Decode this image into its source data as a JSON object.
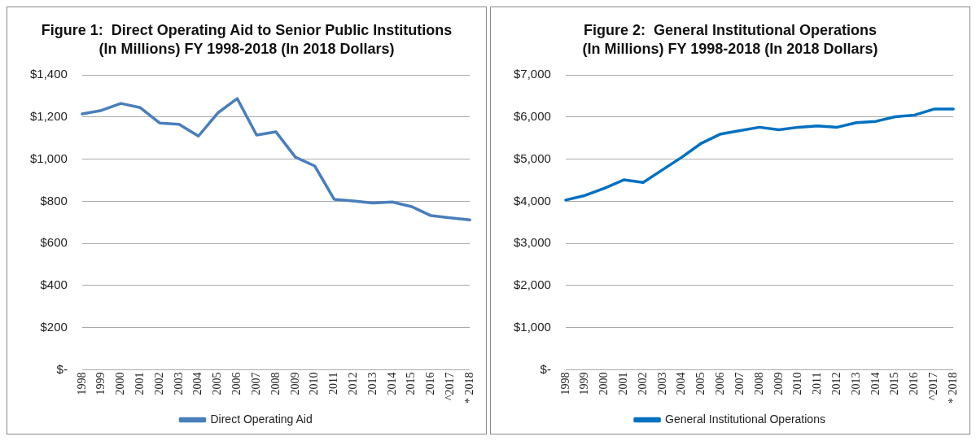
{
  "chart_data": [
    {
      "type": "line",
      "title": "Figure 1:  Direct Operating Aid to Senior Public Institutions",
      "subtitle": "(In Millions) FY 1998-2018 (In 2018 Dollars)",
      "categories": [
        "1998",
        "1999",
        "2000",
        "2001",
        "2002",
        "2003",
        "2004",
        "2005",
        "2006",
        "2007",
        "2008",
        "2009",
        "2010",
        "2011",
        "2012",
        "2013",
        "2014",
        "2015",
        "2016",
        "^2017",
        "* 2018"
      ],
      "series": [
        {
          "name": "Direct Operating Aid",
          "color": "#4a7ebb",
          "values": [
            1215,
            1232,
            1265,
            1245,
            1172,
            1166,
            1110,
            1220,
            1288,
            1115,
            1130,
            1010,
            968,
            810,
            802,
            792,
            797,
            775,
            732,
            722,
            712
          ]
        }
      ],
      "ylim": [
        0,
        1400
      ],
      "yticks": [
        {
          "value": 0,
          "label": "$-"
        },
        {
          "value": 200,
          "label": "$200"
        },
        {
          "value": 400,
          "label": "$400"
        },
        {
          "value": 600,
          "label": "$600"
        },
        {
          "value": 800,
          "label": "$800"
        },
        {
          "value": 1000,
          "label": "$1,000"
        },
        {
          "value": 1200,
          "label": "$1,200"
        },
        {
          "value": 1400,
          "label": "$1,400"
        }
      ],
      "grid": "y",
      "legend": "bottom",
      "marker": "none"
    },
    {
      "type": "line",
      "title": "Figure 2:  General Institutional Operations",
      "subtitle": "(In Millions) FY 1998-2018 (In 2018 Dollars)",
      "categories": [
        "1998",
        "1999",
        "2000",
        "2001",
        "2002",
        "2003",
        "2004",
        "2005",
        "2006",
        "2007",
        "2008",
        "2009",
        "2010",
        "2011",
        "2012",
        "2013",
        "2014",
        "2015",
        "2016",
        "^2017",
        "* 2018"
      ],
      "series": [
        {
          "name": "General Institutional Operations",
          "color": "#0070c0",
          "values": [
            4030,
            4140,
            4310,
            4510,
            4450,
            4750,
            5050,
            5380,
            5600,
            5680,
            5760,
            5700,
            5760,
            5790,
            5760,
            5870,
            5900,
            6010,
            6050,
            6190,
            6190
          ]
        }
      ],
      "ylim": [
        0,
        7000
      ],
      "yticks": [
        {
          "value": 0,
          "label": "$-"
        },
        {
          "value": 1000,
          "label": "$1,000"
        },
        {
          "value": 2000,
          "label": "$2,000"
        },
        {
          "value": 3000,
          "label": "$3,000"
        },
        {
          "value": 4000,
          "label": "$4,000"
        },
        {
          "value": 5000,
          "label": "$5,000"
        },
        {
          "value": 6000,
          "label": "$6,000"
        },
        {
          "value": 7000,
          "label": "$7,000"
        }
      ],
      "grid": "y",
      "legend": "bottom",
      "marker": "none"
    }
  ]
}
